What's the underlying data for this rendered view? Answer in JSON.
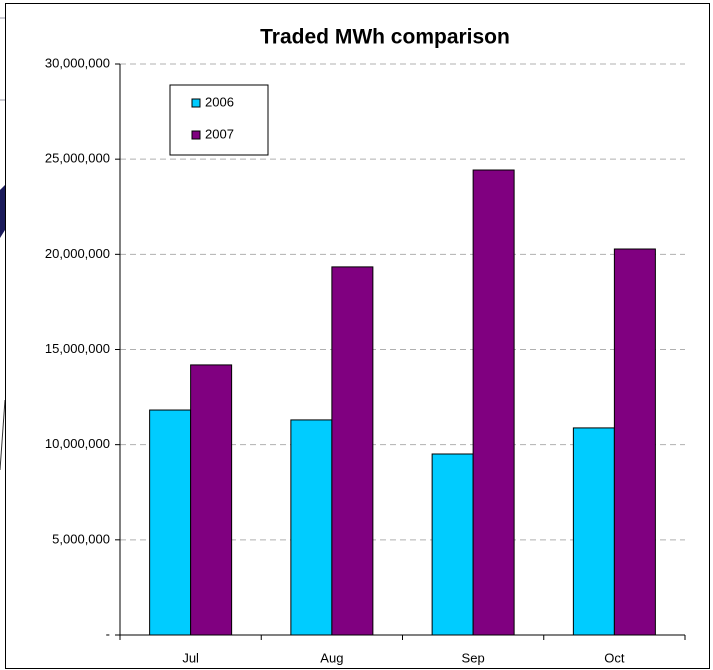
{
  "chart_data": {
    "type": "bar",
    "title": "Traded MWh comparison",
    "categories": [
      "Jul",
      "Aug",
      "Sep",
      "Oct"
    ],
    "series": [
      {
        "name": "2006",
        "color": "#00ccff",
        "values": [
          11820000,
          11300000,
          9510000,
          10880000
        ]
      },
      {
        "name": "2007",
        "color": "#800080",
        "values": [
          14190000,
          19340000,
          24430000,
          20280000
        ]
      }
    ],
    "ylim": [
      0,
      30000000
    ],
    "yticks": [
      {
        "value": 0,
        "label": "-"
      },
      {
        "value": 5000000,
        "label": "5,000,000"
      },
      {
        "value": 10000000,
        "label": "10,000,000"
      },
      {
        "value": 15000000,
        "label": "15,000,000"
      },
      {
        "value": 20000000,
        "label": "20,000,000"
      },
      {
        "value": 25000000,
        "label": "25,000,000"
      },
      {
        "value": 30000000,
        "label": "30,000,000"
      }
    ],
    "grid": true,
    "legend": "upper left"
  }
}
